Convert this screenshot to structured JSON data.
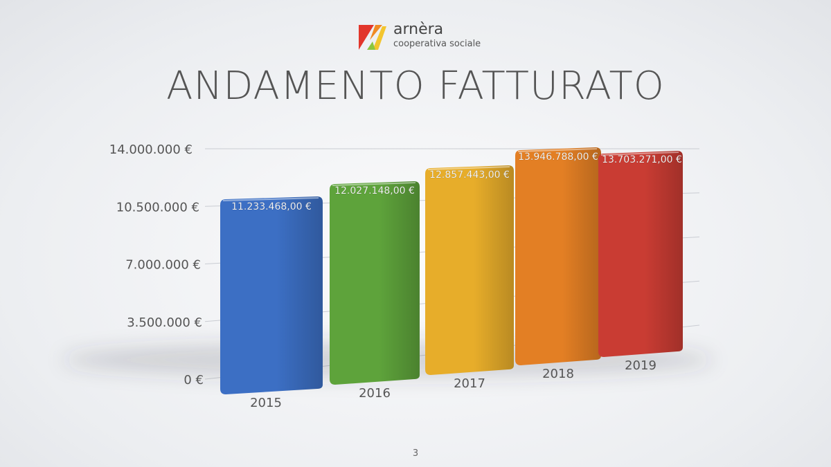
{
  "logo": {
    "name": "arnèra",
    "subtitle": "cooperativa sociale",
    "colors": [
      "#e2362b",
      "#f08a23",
      "#f3c52d",
      "#8cc63e"
    ]
  },
  "slide": {
    "title": "ANDAMENTO FATTURATO",
    "page_number": "3"
  },
  "chart_data": {
    "type": "bar",
    "title": "ANDAMENTO FATTURATO",
    "xlabel": "",
    "ylabel": "",
    "categories": [
      "2015",
      "2016",
      "2017",
      "2018",
      "2019"
    ],
    "values": [
      11233468,
      12027148,
      12857443,
      13946788,
      13703271
    ],
    "value_labels": [
      "11.233.468,00 €",
      "12.027.148,00 €",
      "12.857.443,00 €",
      "13.946.788,00 €",
      "13.703.271,00 €"
    ],
    "ylim": [
      0,
      14000000
    ],
    "yticks": [
      0,
      3500000,
      7000000,
      10500000,
      14000000
    ],
    "ytick_labels": [
      "0 €",
      "3.500.000 €",
      "7.000.000 €",
      "10.500.000 €",
      "14.000.000 €"
    ],
    "colors": [
      "#3c6fc4",
      "#5ea33b",
      "#e7ad2a",
      "#e37f24",
      "#c93c33"
    ],
    "grid": true,
    "legend": "none"
  }
}
